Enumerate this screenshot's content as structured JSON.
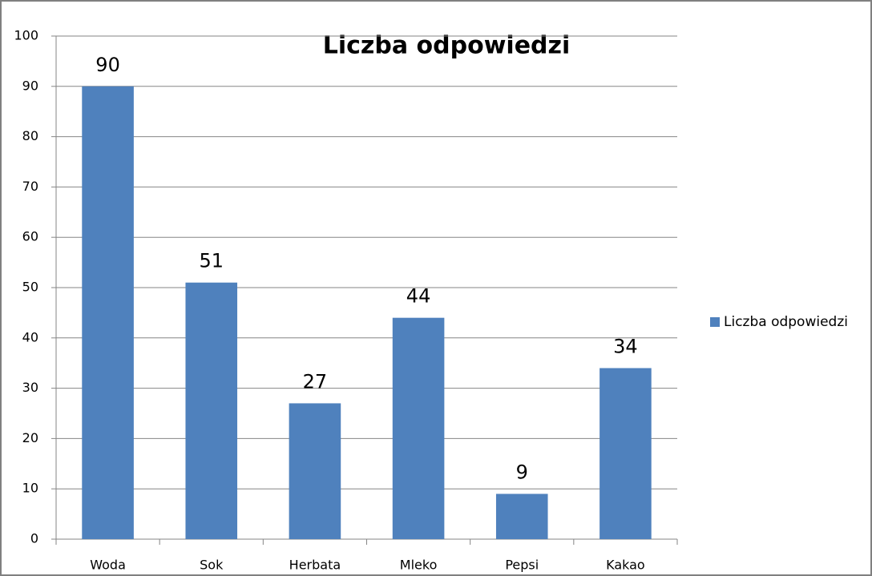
{
  "chart_data": {
    "type": "bar",
    "title": "Liczba odpowiedzi",
    "categories": [
      "Woda",
      "Sok",
      "Herbata",
      "Mleko",
      "Pepsi",
      "Kakao"
    ],
    "series": [
      {
        "name": "Liczba odpowiedzi",
        "color": "#4f81bd",
        "values": [
          90,
          51,
          27,
          44,
          9,
          34
        ]
      }
    ],
    "ylim": [
      0,
      100
    ],
    "yticks": [
      0,
      10,
      20,
      30,
      40,
      50,
      60,
      70,
      80,
      90,
      100
    ],
    "grid": true,
    "legend": "right"
  }
}
